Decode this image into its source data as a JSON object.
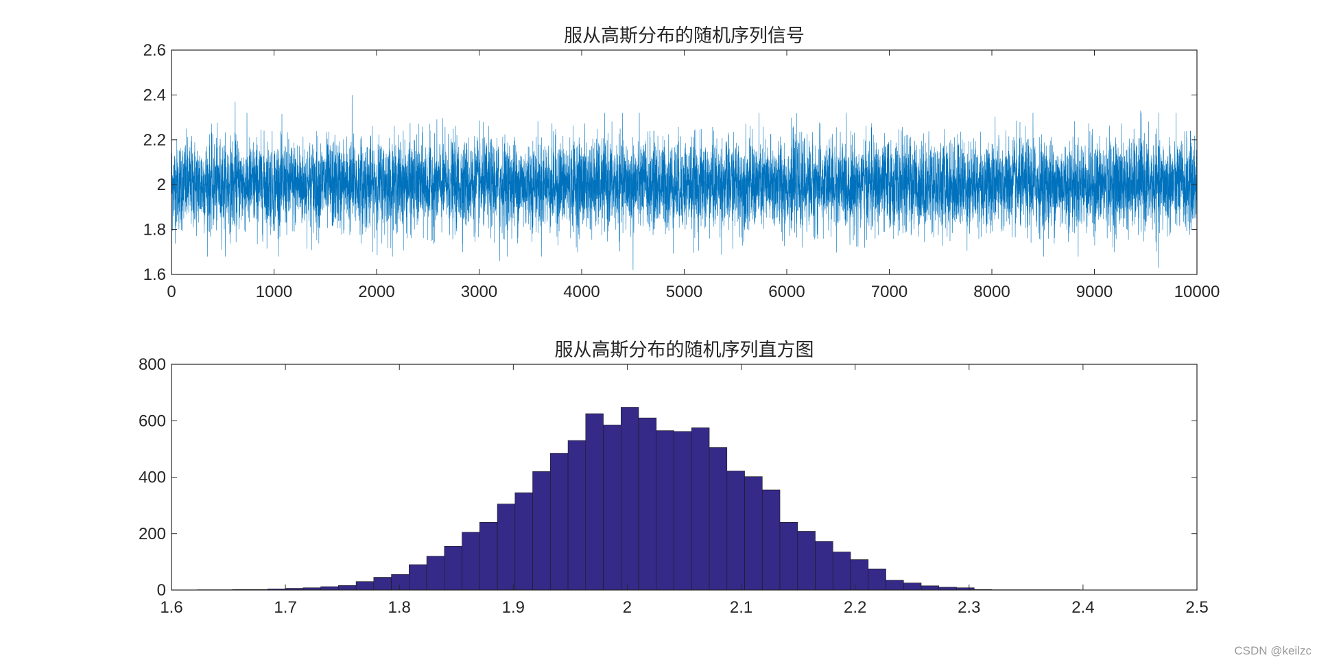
{
  "colors": {
    "signal": "#0072BD",
    "bar_fill": "#352A87",
    "bar_edge": "#1a1a1a",
    "axis": "#262626"
  },
  "watermark": "CSDN @keilzc",
  "chart_data": [
    {
      "type": "line",
      "title": "服从高斯分布的随机序列信号",
      "xlabel": "",
      "ylabel": "",
      "xlim": [
        0,
        10000
      ],
      "ylim": [
        1.6,
        2.6
      ],
      "xticks": [
        0,
        1000,
        2000,
        3000,
        4000,
        5000,
        6000,
        7000,
        8000,
        9000,
        10000
      ],
      "yticks": [
        1.6,
        1.8,
        2,
        2.2,
        2.4,
        2.6
      ],
      "xticklabels": [
        "0",
        "1000",
        "2000",
        "3000",
        "4000",
        "5000",
        "6000",
        "7000",
        "8000",
        "9000",
        "10000"
      ],
      "yticklabels": [
        "1.6",
        "1.8",
        "2",
        "2.2",
        "2.4",
        "2.6"
      ],
      "series": [
        {
          "num_points": 10000,
          "mean": 2.0,
          "std": 0.1,
          "spikes": [
            [
              620,
              2.37
            ],
            [
              1760,
              2.4
            ],
            [
              4500,
              1.62
            ],
            [
              9620,
              1.63
            ],
            [
              9450,
              2.33
            ],
            [
              8400,
              2.32
            ],
            [
              3200,
              1.66
            ]
          ]
        }
      ],
      "grid": false
    },
    {
      "type": "bar",
      "title": "服从高斯分布的随机序列直方图",
      "xlabel": "",
      "ylabel": "",
      "xlim": [
        1.6,
        2.5
      ],
      "ylim": [
        0,
        800
      ],
      "xticks": [
        1.6,
        1.7,
        1.8,
        1.9,
        2,
        2.1,
        2.2,
        2.3,
        2.4,
        2.5
      ],
      "yticks": [
        0,
        200,
        400,
        600,
        800
      ],
      "xticklabels": [
        "1.6",
        "1.7",
        "1.8",
        "1.9",
        "2",
        "2.1",
        "2.2",
        "2.3",
        "2.4",
        "2.5"
      ],
      "yticklabels": [
        "0",
        "200",
        "400",
        "600",
        "800"
      ],
      "bin_edges_start": 1.6225,
      "bin_width": 0.0155,
      "values": [
        1,
        1,
        2,
        2,
        4,
        6,
        8,
        12,
        16,
        30,
        45,
        55,
        90,
        120,
        155,
        205,
        240,
        305,
        345,
        420,
        485,
        530,
        625,
        585,
        648,
        610,
        565,
        562,
        575,
        505,
        422,
        402,
        355,
        240,
        208,
        172,
        135,
        108,
        75,
        35,
        25,
        15,
        10,
        8,
        2,
        1,
        1,
        1,
        1,
        1,
        0,
        0,
        0
      ],
      "grid": false
    }
  ]
}
